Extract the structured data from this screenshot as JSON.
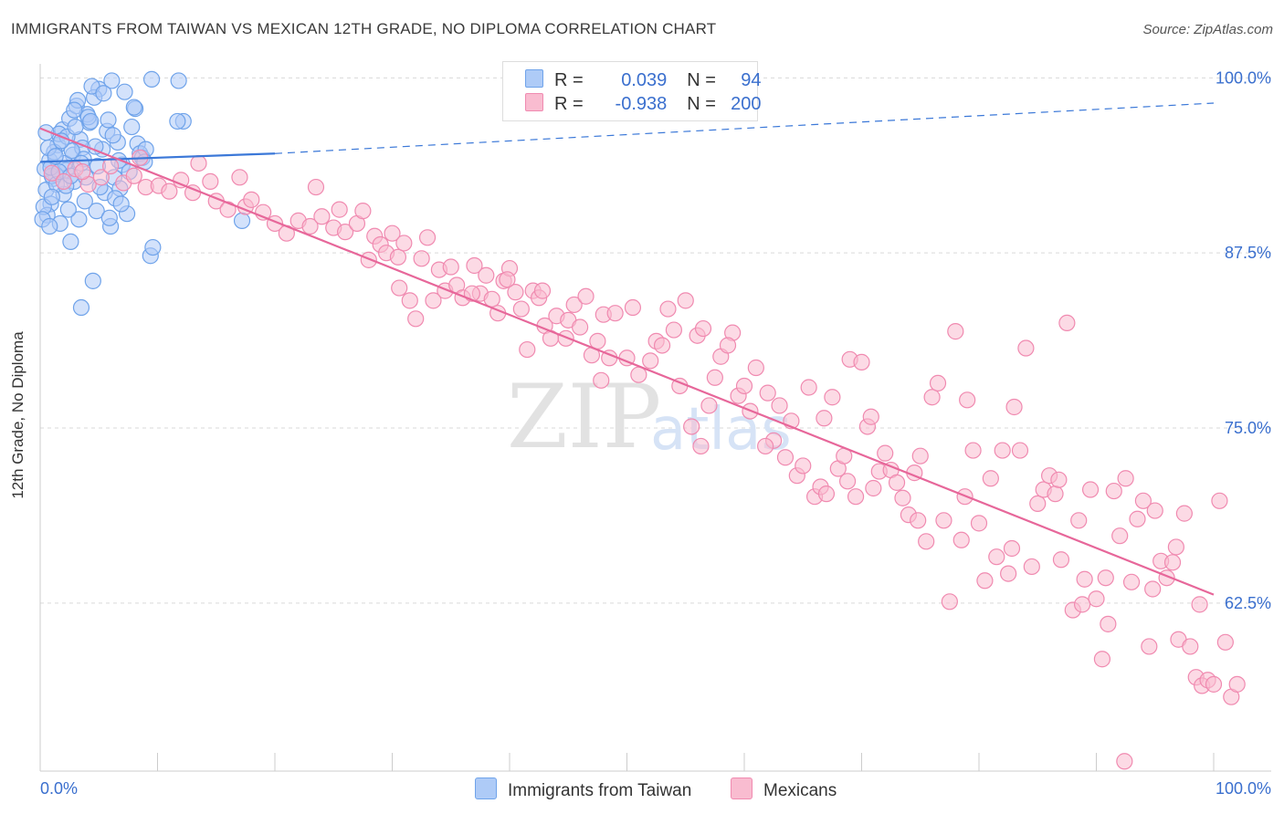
{
  "title": "IMMIGRANTS FROM TAIWAN VS MEXICAN 12TH GRADE, NO DIPLOMA CORRELATION CHART",
  "source": "Source: ZipAtlas.com",
  "watermark": {
    "zip": "ZIP",
    "atlas": "atlas"
  },
  "legend": {
    "rows": [
      {
        "r_label": "R = ",
        "r_value": "0.039",
        "n_label": "N = ",
        "n_value": "94",
        "color": "#aecbf7"
      },
      {
        "r_label": "R = ",
        "r_value": "-0.938",
        "n_label": "N = ",
        "n_value": "200",
        "color": "#f9bcd0"
      }
    ]
  },
  "bottom_legend": [
    {
      "label": "Immigrants from Taiwan",
      "color": "#aecbf7"
    },
    {
      "label": "Mexicans",
      "color": "#f9bcd0"
    }
  ],
  "chart_data": {
    "type": "scatter",
    "title": "IMMIGRANTS FROM TAIWAN VS MEXICAN 12TH GRADE, NO DIPLOMA CORRELATION CHART",
    "xlabel": "",
    "ylabel": "12th Grade, No Diploma",
    "xlim": [
      0,
      100
    ],
    "ylim": [
      50.5,
      101
    ],
    "x_tick_labels": [
      "0.0%",
      "100.0%"
    ],
    "y_ticks": [
      62.5,
      75.0,
      87.5,
      100.0
    ],
    "y_tick_labels": [
      "62.5%",
      "75.0%",
      "87.5%",
      "100.0%"
    ],
    "grid": true,
    "legend_position": "top-center",
    "series": [
      {
        "name": "Immigrants from Taiwan",
        "color": "#6fa3ea",
        "fill": "#aecbf7",
        "line_color": "#3b78d8",
        "r": 0.039,
        "n": 94,
        "trend": {
          "x": [
            0,
            20
          ],
          "y": [
            94.0,
            94.6
          ],
          "dashed_to": [
            100,
            98.2
          ]
        },
        "points": [
          [
            1.5,
            95.2
          ],
          [
            0.8,
            94.1
          ],
          [
            2.2,
            93.4
          ],
          [
            1.1,
            92.8
          ],
          [
            0.5,
            92.0
          ],
          [
            2.8,
            94.5
          ],
          [
            3.4,
            95.6
          ],
          [
            1.9,
            96.3
          ],
          [
            2.5,
            97.1
          ],
          [
            4.2,
            96.8
          ],
          [
            3.1,
            98.0
          ],
          [
            5.0,
            99.2
          ],
          [
            4.6,
            98.6
          ],
          [
            6.1,
            99.8
          ],
          [
            7.2,
            99.0
          ],
          [
            4.0,
            97.4
          ],
          [
            3.6,
            95.0
          ],
          [
            2.1,
            93.9
          ],
          [
            1.3,
            93.1
          ],
          [
            0.9,
            91.0
          ],
          [
            0.6,
            90.2
          ],
          [
            1.7,
            89.6
          ],
          [
            2.6,
            88.3
          ],
          [
            3.3,
            89.9
          ],
          [
            4.8,
            90.5
          ],
          [
            5.5,
            91.8
          ],
          [
            6.3,
            92.9
          ],
          [
            7.0,
            93.8
          ],
          [
            6.6,
            95.4
          ],
          [
            5.7,
            96.2
          ],
          [
            8.1,
            97.8
          ],
          [
            9.5,
            99.9
          ],
          [
            11.8,
            99.8
          ],
          [
            12.2,
            96.9
          ],
          [
            11.7,
            96.9
          ],
          [
            8.3,
            95.3
          ],
          [
            8.5,
            94.6
          ],
          [
            8.7,
            94.3
          ],
          [
            9.0,
            94.9
          ],
          [
            6.8,
            92.1
          ],
          [
            6.4,
            91.4
          ],
          [
            7.4,
            90.3
          ],
          [
            6.0,
            89.4
          ],
          [
            9.4,
            87.3
          ],
          [
            9.6,
            87.9
          ],
          [
            4.5,
            85.5
          ],
          [
            3.5,
            83.6
          ],
          [
            17.2,
            89.8
          ],
          [
            1.2,
            94.7
          ],
          [
            0.4,
            93.5
          ],
          [
            2.9,
            92.6
          ],
          [
            3.9,
            92.9
          ],
          [
            1.6,
            96.0
          ],
          [
            2.3,
            95.8
          ],
          [
            0.7,
            95.0
          ],
          [
            1.0,
            93.0
          ],
          [
            3.7,
            94.2
          ],
          [
            4.9,
            93.7
          ],
          [
            5.3,
            94.9
          ],
          [
            7.8,
            96.5
          ],
          [
            8.0,
            97.9
          ],
          [
            4.4,
            99.4
          ],
          [
            5.8,
            97.0
          ],
          [
            2.0,
            91.7
          ],
          [
            1.4,
            92.4
          ],
          [
            0.3,
            90.8
          ],
          [
            0.2,
            89.9
          ],
          [
            3.0,
            96.5
          ],
          [
            4.1,
            97.2
          ],
          [
            2.7,
            94.8
          ],
          [
            1.8,
            95.5
          ],
          [
            6.9,
            91.0
          ],
          [
            5.1,
            92.2
          ],
          [
            3.8,
            91.2
          ],
          [
            2.4,
            90.6
          ],
          [
            0.9,
            93.6
          ],
          [
            1.6,
            93.3
          ],
          [
            0.5,
            96.1
          ],
          [
            3.2,
            98.4
          ],
          [
            5.4,
            98.9
          ],
          [
            4.3,
            96.9
          ],
          [
            6.7,
            94.1
          ],
          [
            7.6,
            93.3
          ],
          [
            8.9,
            94.0
          ],
          [
            2.2,
            92.3
          ],
          [
            1.0,
            91.5
          ],
          [
            0.8,
            89.4
          ],
          [
            3.5,
            93.9
          ],
          [
            4.7,
            95.1
          ],
          [
            2.9,
            97.7
          ],
          [
            6.2,
            95.9
          ],
          [
            1.3,
            94.4
          ],
          [
            2.6,
            93.0
          ],
          [
            5.9,
            90.0
          ]
        ]
      },
      {
        "name": "Mexicans",
        "color": "#f08ab0",
        "fill": "#f9bcd0",
        "line_color": "#e7679a",
        "r": -0.938,
        "n": 200,
        "trend": {
          "x": [
            0,
            100
          ],
          "y": [
            96.4,
            63.1
          ]
        },
        "points": [
          [
            1.0,
            93.2
          ],
          [
            2.0,
            92.6
          ],
          [
            3.0,
            93.5
          ],
          [
            4.1,
            92.4
          ],
          [
            5.2,
            92.9
          ],
          [
            6.0,
            93.7
          ],
          [
            7.1,
            92.5
          ],
          [
            8.0,
            93.0
          ],
          [
            9.0,
            92.2
          ],
          [
            10.1,
            92.3
          ],
          [
            11.0,
            91.9
          ],
          [
            12.0,
            92.7
          ],
          [
            13.0,
            91.8
          ],
          [
            13.5,
            93.9
          ],
          [
            14.5,
            92.6
          ],
          [
            15.0,
            91.2
          ],
          [
            16.0,
            90.6
          ],
          [
            17.0,
            92.9
          ],
          [
            17.5,
            90.8
          ],
          [
            18.0,
            91.3
          ],
          [
            19.0,
            90.4
          ],
          [
            20.0,
            89.6
          ],
          [
            21.0,
            88.9
          ],
          [
            22.0,
            89.8
          ],
          [
            23.0,
            89.4
          ],
          [
            23.5,
            92.2
          ],
          [
            24.0,
            90.1
          ],
          [
            25.0,
            89.3
          ],
          [
            25.5,
            90.6
          ],
          [
            26.0,
            89.0
          ],
          [
            27.0,
            89.6
          ],
          [
            27.5,
            90.5
          ],
          [
            28.0,
            87.0
          ],
          [
            28.5,
            88.7
          ],
          [
            29.0,
            88.1
          ],
          [
            29.5,
            87.5
          ],
          [
            30.0,
            88.9
          ],
          [
            30.5,
            87.2
          ],
          [
            31.0,
            88.2
          ],
          [
            31.5,
            84.1
          ],
          [
            32.0,
            82.8
          ],
          [
            32.5,
            87.1
          ],
          [
            33.0,
            88.6
          ],
          [
            34.0,
            86.3
          ],
          [
            34.5,
            84.8
          ],
          [
            35.0,
            86.5
          ],
          [
            35.5,
            85.2
          ],
          [
            36.0,
            84.3
          ],
          [
            37.0,
            86.6
          ],
          [
            37.5,
            84.6
          ],
          [
            38.0,
            85.9
          ],
          [
            38.5,
            84.2
          ],
          [
            39.0,
            83.2
          ],
          [
            39.5,
            85.5
          ],
          [
            40.0,
            86.4
          ],
          [
            40.5,
            84.7
          ],
          [
            41.0,
            83.5
          ],
          [
            41.5,
            80.6
          ],
          [
            42.0,
            84.8
          ],
          [
            42.5,
            84.3
          ],
          [
            43.0,
            82.3
          ],
          [
            43.5,
            81.4
          ],
          [
            44.0,
            83.0
          ],
          [
            45.0,
            82.7
          ],
          [
            45.5,
            83.8
          ],
          [
            46.0,
            82.2
          ],
          [
            46.5,
            84.4
          ],
          [
            47.0,
            80.2
          ],
          [
            47.5,
            81.2
          ],
          [
            48.0,
            83.1
          ],
          [
            48.5,
            80.0
          ],
          [
            49.0,
            83.2
          ],
          [
            50.0,
            80.0
          ],
          [
            50.5,
            83.6
          ],
          [
            51.0,
            78.8
          ],
          [
            52.0,
            79.8
          ],
          [
            52.5,
            81.2
          ],
          [
            53.0,
            80.9
          ],
          [
            53.5,
            83.5
          ],
          [
            54.0,
            82.0
          ],
          [
            54.5,
            78.0
          ],
          [
            55.0,
            84.1
          ],
          [
            55.5,
            75.1
          ],
          [
            56.0,
            81.6
          ],
          [
            56.5,
            82.1
          ],
          [
            57.0,
            76.6
          ],
          [
            57.5,
            78.6
          ],
          [
            58.0,
            80.1
          ],
          [
            59.0,
            81.8
          ],
          [
            59.5,
            77.3
          ],
          [
            60.0,
            78.0
          ],
          [
            60.5,
            76.2
          ],
          [
            61.0,
            79.3
          ],
          [
            62.0,
            77.5
          ],
          [
            62.5,
            74.1
          ],
          [
            63.0,
            76.6
          ],
          [
            63.5,
            72.9
          ],
          [
            64.0,
            75.5
          ],
          [
            64.5,
            71.6
          ],
          [
            65.0,
            72.3
          ],
          [
            65.5,
            77.9
          ],
          [
            66.0,
            70.1
          ],
          [
            66.5,
            70.8
          ],
          [
            67.0,
            70.3
          ],
          [
            67.5,
            77.2
          ],
          [
            68.0,
            72.1
          ],
          [
            68.5,
            73.0
          ],
          [
            69.0,
            79.9
          ],
          [
            69.5,
            70.1
          ],
          [
            70.0,
            79.7
          ],
          [
            70.5,
            75.1
          ],
          [
            71.0,
            70.7
          ],
          [
            71.5,
            71.9
          ],
          [
            72.0,
            73.2
          ],
          [
            72.5,
            72.0
          ],
          [
            73.0,
            71.1
          ],
          [
            73.5,
            70.0
          ],
          [
            74.0,
            68.8
          ],
          [
            74.5,
            71.8
          ],
          [
            75.0,
            73.0
          ],
          [
            75.5,
            66.9
          ],
          [
            76.0,
            77.2
          ],
          [
            76.5,
            78.2
          ],
          [
            77.0,
            68.4
          ],
          [
            77.5,
            62.6
          ],
          [
            78.0,
            81.9
          ],
          [
            78.5,
            67.0
          ],
          [
            79.0,
            77.0
          ],
          [
            79.5,
            73.4
          ],
          [
            80.0,
            68.2
          ],
          [
            80.5,
            64.1
          ],
          [
            81.0,
            71.4
          ],
          [
            81.5,
            65.8
          ],
          [
            82.0,
            73.4
          ],
          [
            82.5,
            64.6
          ],
          [
            83.0,
            76.5
          ],
          [
            83.5,
            73.4
          ],
          [
            84.0,
            80.7
          ],
          [
            84.5,
            65.1
          ],
          [
            85.0,
            69.6
          ],
          [
            85.5,
            70.6
          ],
          [
            86.0,
            71.6
          ],
          [
            86.5,
            70.3
          ],
          [
            87.0,
            65.6
          ],
          [
            87.5,
            82.5
          ],
          [
            88.0,
            62.0
          ],
          [
            88.5,
            68.4
          ],
          [
            89.0,
            64.2
          ],
          [
            89.5,
            70.6
          ],
          [
            90.0,
            62.8
          ],
          [
            90.5,
            58.5
          ],
          [
            91.0,
            61.0
          ],
          [
            91.5,
            70.5
          ],
          [
            92.0,
            67.3
          ],
          [
            92.5,
            71.4
          ],
          [
            93.0,
            64.0
          ],
          [
            93.5,
            68.5
          ],
          [
            94.0,
            69.8
          ],
          [
            94.5,
            59.4
          ],
          [
            95.0,
            69.1
          ],
          [
            95.5,
            65.5
          ],
          [
            96.0,
            64.3
          ],
          [
            96.5,
            65.4
          ],
          [
            97.0,
            59.9
          ],
          [
            97.5,
            68.9
          ],
          [
            98.0,
            59.4
          ],
          [
            98.5,
            57.2
          ],
          [
            99.0,
            56.6
          ],
          [
            99.5,
            57.0
          ],
          [
            100.0,
            56.7
          ],
          [
            100.5,
            69.8
          ],
          [
            101.0,
            59.7
          ],
          [
            101.5,
            55.8
          ],
          [
            102.0,
            56.7
          ],
          [
            92.4,
            51.2
          ],
          [
            56.3,
            73.7
          ],
          [
            47.8,
            78.4
          ],
          [
            30.6,
            85.0
          ],
          [
            33.5,
            84.1
          ],
          [
            36.8,
            84.6
          ],
          [
            39.8,
            85.6
          ],
          [
            42.8,
            84.8
          ],
          [
            44.8,
            81.4
          ],
          [
            58.6,
            80.9
          ],
          [
            61.8,
            73.7
          ],
          [
            66.8,
            75.7
          ],
          [
            68.8,
            71.2
          ],
          [
            70.8,
            75.8
          ],
          [
            74.8,
            68.4
          ],
          [
            78.8,
            70.1
          ],
          [
            82.8,
            66.4
          ],
          [
            86.8,
            71.3
          ],
          [
            88.8,
            62.4
          ],
          [
            90.8,
            64.3
          ],
          [
            94.8,
            63.5
          ],
          [
            96.8,
            66.5
          ],
          [
            98.8,
            62.4
          ],
          [
            8.5,
            94.3
          ],
          [
            3.6,
            93.3
          ]
        ]
      }
    ]
  }
}
